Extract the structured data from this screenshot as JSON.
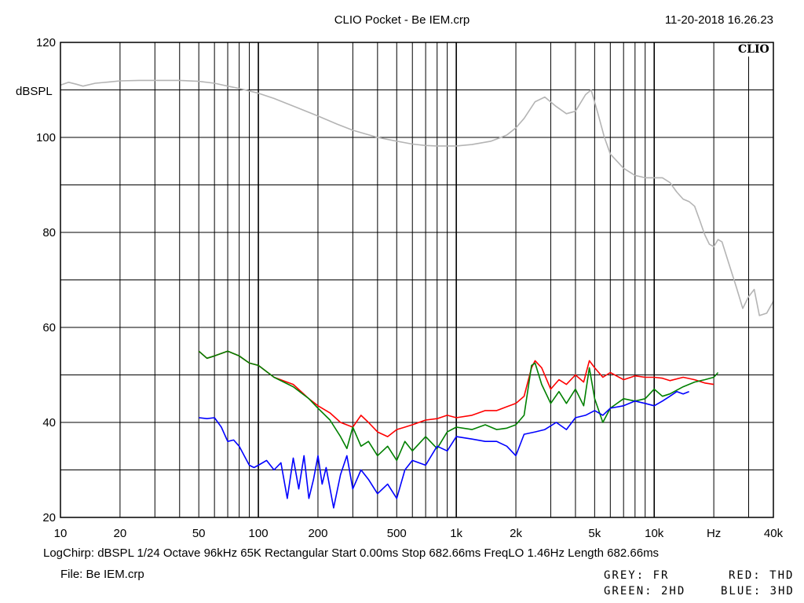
{
  "header": {
    "title": "CLIO Pocket - Be IEM.crp",
    "timestamp": "11-20-2018 16.26.23"
  },
  "status": {
    "settings": "LogChirp:  dBSPL   1/24 Octave   96kHz   65K   Rectangular   Start 0.00ms    Stop 682.66ms    FreqLO 1.46Hz   Length 682.66ms",
    "file": "File: Be IEM.crp"
  },
  "legend": [
    {
      "label": "GREY: FR",
      "color": "#b4b4b4"
    },
    {
      "label": "RED: THD",
      "color": "#ff0000"
    },
    {
      "label": "GREEN: 2HD",
      "color": "#008000"
    },
    {
      "label": "BLUE: 3HD",
      "color": "#0000ff"
    }
  ],
  "chart_data": {
    "type": "line",
    "title": "CLIO Pocket - Be IEM.crp",
    "brand": "CLIO",
    "ylabel": "dBSPL",
    "xlabel": "Hz",
    "x_scale": "log",
    "xlim": [
      10,
      40000
    ],
    "ylim": [
      20,
      120
    ],
    "grid": true,
    "x_major_ticks": [
      10,
      100,
      1000,
      10000
    ],
    "x_tick_labels": [
      {
        "x": 10,
        "label": "10"
      },
      {
        "x": 20,
        "label": "20"
      },
      {
        "x": 50,
        "label": "50"
      },
      {
        "x": 100,
        "label": "100"
      },
      {
        "x": 200,
        "label": "200"
      },
      {
        "x": 500,
        "label": "500"
      },
      {
        "x": 1000,
        "label": "1k"
      },
      {
        "x": 2000,
        "label": "2k"
      },
      {
        "x": 5000,
        "label": "5k"
      },
      {
        "x": 10000,
        "label": "10k"
      },
      {
        "x": 20000,
        "label": "Hz"
      },
      {
        "x": 40000,
        "label": "40k"
      }
    ],
    "y_tick_labels": [
      {
        "y": 120,
        "label": "120"
      },
      {
        "y": 100,
        "label": "100"
      },
      {
        "y": 80,
        "label": "80"
      },
      {
        "y": 60,
        "label": "60"
      },
      {
        "y": 40,
        "label": "40"
      },
      {
        "y": 20,
        "label": "20"
      }
    ],
    "series": [
      {
        "name": "FR",
        "color": "#b4b4b4",
        "x": [
          10,
          11,
          12,
          13,
          15,
          18,
          20,
          25,
          30,
          40,
          50,
          60,
          70,
          80,
          100,
          120,
          150,
          200,
          250,
          300,
          400,
          500,
          600,
          700,
          800,
          1000,
          1200,
          1500,
          1800,
          2000,
          2200,
          2500,
          2800,
          3200,
          3600,
          4000,
          4500,
          4800,
          5200,
          5600,
          6000,
          7000,
          8000,
          9000,
          10000,
          11000,
          12000,
          13000,
          14000,
          15000,
          16000,
          17000,
          18000,
          19000,
          20000,
          21000,
          22000,
          24000,
          26000,
          28000,
          30000,
          32000,
          34000,
          37000,
          40000
        ],
        "y": [
          111,
          111.6,
          111.2,
          110.8,
          111.4,
          111.7,
          111.9,
          112,
          112,
          112,
          111.8,
          111.4,
          110.8,
          110.3,
          109.3,
          108.2,
          106.6,
          104.5,
          102.8,
          101.5,
          100,
          99.2,
          98.6,
          98.3,
          98.2,
          98.2,
          98.5,
          99.2,
          100.5,
          102,
          104,
          107.5,
          108.5,
          106.5,
          105,
          105.5,
          109,
          110,
          105,
          100,
          96.5,
          93.5,
          92,
          91.5,
          91.5,
          91.5,
          90.5,
          88.5,
          87,
          86.5,
          85.5,
          82.5,
          79.5,
          77.5,
          77,
          78.5,
          78,
          73,
          68.5,
          64,
          66.5,
          68,
          62.5,
          63,
          65.5
        ]
      },
      {
        "name": "THD",
        "color": "#ff0000",
        "x": [
          50,
          55,
          60,
          70,
          80,
          90,
          100,
          120,
          150,
          180,
          200,
          230,
          260,
          300,
          330,
          360,
          400,
          450,
          500,
          550,
          600,
          700,
          800,
          900,
          1000,
          1200,
          1400,
          1600,
          1800,
          2000,
          2200,
          2400,
          2500,
          2700,
          3000,
          3300,
          3600,
          4000,
          4400,
          4700,
          5000,
          5500,
          6000,
          7000,
          8000,
          9000,
          10000,
          11000,
          12000,
          14000,
          16000,
          18000,
          20000
        ],
        "y": [
          55,
          53.5,
          54,
          55,
          54,
          52.5,
          52,
          49.5,
          48,
          45,
          43.5,
          42,
          40,
          39,
          41.5,
          40,
          38,
          37,
          38.5,
          39,
          39.5,
          40.5,
          40.8,
          41.5,
          41,
          41.5,
          42.5,
          42.5,
          43.3,
          44,
          45.5,
          51.5,
          53,
          51.5,
          47,
          49,
          48,
          50,
          48.5,
          53,
          51.5,
          49.5,
          50.5,
          49,
          49.8,
          49.5,
          49.5,
          49.3,
          48.8,
          49.5,
          49,
          48.3,
          48
        ]
      },
      {
        "name": "2HD",
        "color": "#008000",
        "x": [
          50,
          55,
          60,
          70,
          80,
          90,
          100,
          120,
          150,
          180,
          200,
          230,
          260,
          280,
          300,
          330,
          360,
          400,
          450,
          500,
          550,
          600,
          700,
          800,
          900,
          1000,
          1200,
          1400,
          1600,
          1800,
          2000,
          2200,
          2400,
          2500,
          2700,
          3000,
          3300,
          3600,
          4000,
          4400,
          4700,
          5000,
          5500,
          6000,
          7000,
          8000,
          9000,
          10000,
          11000,
          12000,
          14000,
          16000,
          18000,
          20000,
          21000
        ],
        "y": [
          55,
          53.5,
          54,
          55,
          54,
          52.5,
          52,
          49.5,
          47.5,
          45,
          43,
          40.5,
          37,
          34.5,
          39,
          35,
          36,
          33,
          35,
          32,
          36,
          34,
          37,
          34.5,
          38,
          39,
          38.5,
          39.5,
          38.5,
          38.8,
          39.5,
          41.5,
          52,
          52.5,
          48,
          44,
          46.5,
          44,
          47,
          43.5,
          51.5,
          45,
          40,
          43,
          45,
          44.5,
          45,
          47,
          45.5,
          46,
          47.5,
          48.5,
          49,
          49.5,
          50.5
        ]
      },
      {
        "name": "3HD",
        "color": "#0000ff",
        "x": [
          50,
          55,
          60,
          65,
          70,
          75,
          80,
          90,
          95,
          100,
          110,
          120,
          130,
          140,
          150,
          160,
          170,
          180,
          190,
          200,
          210,
          220,
          240,
          260,
          280,
          300,
          330,
          360,
          400,
          450,
          500,
          550,
          600,
          700,
          800,
          900,
          1000,
          1200,
          1400,
          1600,
          1800,
          2000,
          2200,
          2500,
          2800,
          3200,
          3600,
          4000,
          4500,
          5000,
          5500,
          6000,
          7000,
          8000,
          9000,
          10000,
          11000,
          12000,
          13000,
          14000,
          15000
        ],
        "y": [
          41,
          40.8,
          41,
          39,
          36,
          36.3,
          35,
          31,
          30.5,
          31,
          32,
          30,
          31.5,
          24,
          32.5,
          26,
          33,
          24,
          28,
          33,
          27,
          30.5,
          22,
          29,
          33,
          26,
          30,
          28,
          25,
          27,
          24,
          30,
          32,
          31,
          35,
          34,
          37,
          36.5,
          36,
          36,
          35,
          33,
          37.5,
          38,
          38.5,
          40,
          38.5,
          41,
          41.5,
          42.5,
          41.5,
          43,
          43.5,
          44.5,
          44,
          43.5,
          44.5,
          45.5,
          46.5,
          46,
          46.5
        ]
      }
    ]
  }
}
